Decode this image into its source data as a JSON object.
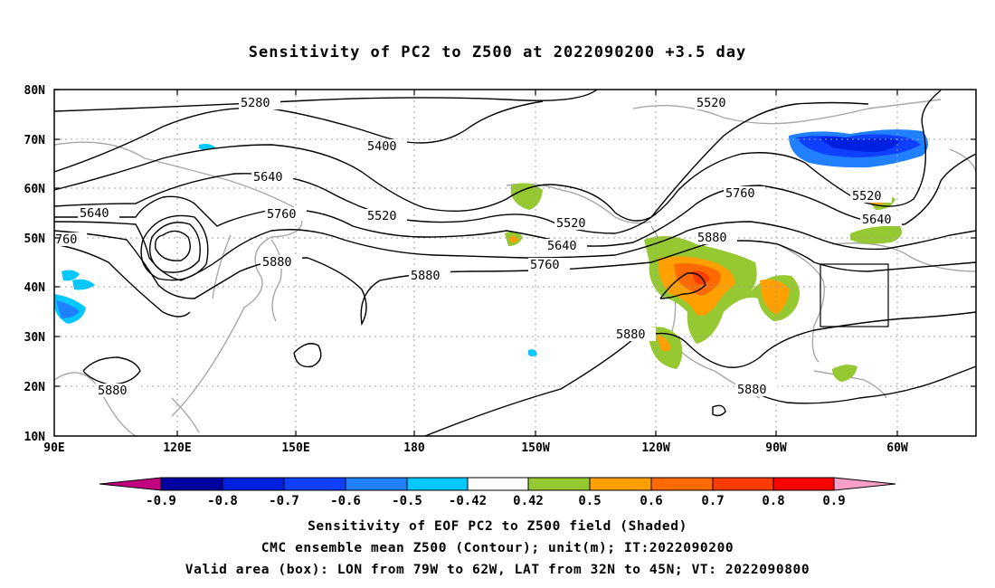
{
  "title": "Sensitivity of PC2 to Z500 at 2022090200 +3.5 day",
  "lat_labels": [
    "80N",
    "70N",
    "60N",
    "50N",
    "40N",
    "30N",
    "20N",
    "10N"
  ],
  "lon_labels": [
    "90E",
    "120E",
    "150E",
    "180",
    "150W",
    "120W",
    "90W",
    "60W"
  ],
  "contour_labels": [
    "5280",
    "5400",
    "5520",
    "5520",
    "5520",
    "5520",
    "5640",
    "5640",
    "5640",
    "5640",
    "5760",
    "5760",
    "5760",
    "5880",
    "5880",
    "5880",
    "5880",
    "5880",
    "5880",
    "760"
  ],
  "colorbar": {
    "labels": [
      "-0.9",
      "-0.8",
      "-0.7",
      "-0.6",
      "-0.5",
      "-0.42",
      "0.42",
      "0.5",
      "0.6",
      "0.7",
      "0.8",
      "0.9"
    ],
    "colors": [
      "#c0007f",
      "#0000a0",
      "#0020e0",
      "#1040ff",
      "#2080ff",
      "#00c8ff",
      "#ffffff",
      "#96c832",
      "#ffa000",
      "#ff6a00",
      "#ff3c00",
      "#ff0000",
      "#f8a0c8"
    ]
  },
  "captions": [
    "Sensitivity of EOF PC2 to Z500 field (Shaded)",
    "CMC ensemble mean Z500 (Contour); unit(m); IT:2022090200",
    "Valid area (box): LON from 79W to 62W, LAT from 32N to 45N; VT: 2022090800"
  ]
}
